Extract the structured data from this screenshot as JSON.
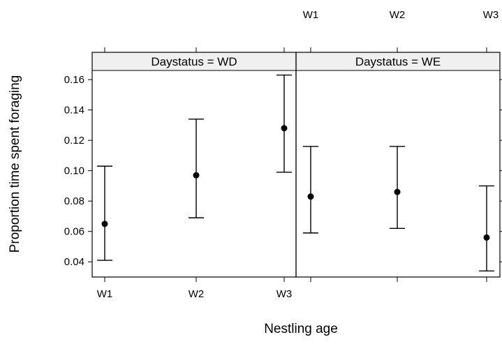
{
  "chart_data": {
    "type": "scatter",
    "subtype": "point estimates with error bars, lattice panels",
    "xlabel": "Nestling age",
    "ylabel": "Proportion time spent foraging",
    "categories": [
      "W1",
      "W2",
      "W3"
    ],
    "ylim": [
      0.03,
      0.166
    ],
    "yticks": [
      0.04,
      0.06,
      0.08,
      0.1,
      0.12,
      0.14,
      0.16
    ],
    "ytick_labels": [
      "0.04",
      "0.06",
      "0.08",
      "0.10",
      "0.12",
      "0.14",
      "0.16"
    ],
    "panels": [
      {
        "strip": "Daystatus = WD",
        "points": [
          {
            "x": "W1",
            "y": 0.065,
            "lower": 0.041,
            "upper": 0.103
          },
          {
            "x": "W2",
            "y": 0.097,
            "lower": 0.069,
            "upper": 0.134
          },
          {
            "x": "W3",
            "y": 0.128,
            "lower": 0.099,
            "upper": 0.163
          }
        ]
      },
      {
        "strip": "Daystatus = WE",
        "points": [
          {
            "x": "W1",
            "y": 0.083,
            "lower": 0.059,
            "upper": 0.116
          },
          {
            "x": "W2",
            "y": 0.086,
            "lower": 0.062,
            "upper": 0.116
          },
          {
            "x": "W3",
            "y": 0.056,
            "lower": 0.034,
            "upper": 0.09
          }
        ]
      }
    ],
    "colors": {
      "marks": "#000000",
      "strip_fill": "#f0f0f0",
      "frame": "#000000"
    }
  }
}
